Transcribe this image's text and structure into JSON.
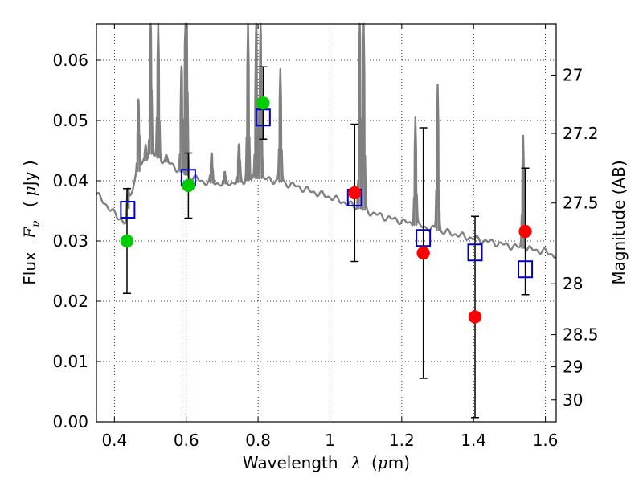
{
  "chart_data": {
    "type": "scatter",
    "xlabel_text": "Wavelength",
    "xlabel_symbol": "λ",
    "xlabel_unit_open": "(",
    "xlabel_unit_mu": "μ",
    "xlabel_unit_rest": "m)",
    "ylabel_text": "Flux",
    "ylabel_symbol": "F",
    "ylabel_sub": "ν",
    "ylabel_unit_open": "(",
    "ylabel_unit_mu": "μ",
    "ylabel_unit_rest": "Jy )",
    "y2label": "Magnitude (AB)",
    "xlim": [
      0.35,
      1.63
    ],
    "ylim": [
      0.0,
      0.066
    ],
    "grid": true,
    "xticks": [
      0.4,
      0.6,
      0.8,
      1.0,
      1.2,
      1.4,
      1.6
    ],
    "xtick_labels": [
      "0.4",
      "0.6",
      "0.8",
      "1",
      "1.2",
      "1.4",
      "1.6"
    ],
    "yticks": [
      0.0,
      0.01,
      0.02,
      0.03,
      0.04,
      0.05,
      0.06
    ],
    "ytick_labels": [
      "0.00",
      "0.01",
      "0.02",
      "0.03",
      "0.04",
      "0.05",
      "0.06"
    ],
    "y2ticks": [
      27,
      27.2,
      27.5,
      28,
      28.5,
      29,
      30
    ],
    "y2tick_labels": [
      "27",
      "27.2",
      "27.5",
      "28",
      "28.5",
      "29",
      "30"
    ],
    "series": [
      {
        "marker": "square",
        "color": "#0000cc",
        "points": [
          {
            "x": 0.437,
            "y": 0.0352
          },
          {
            "x": 0.606,
            "y": 0.0405
          },
          {
            "x": 0.814,
            "y": 0.0505
          },
          {
            "x": 1.069,
            "y": 0.0372
          },
          {
            "x": 1.26,
            "y": 0.0305
          },
          {
            "x": 1.404,
            "y": 0.0281
          },
          {
            "x": 1.544,
            "y": 0.0253
          }
        ]
      },
      {
        "marker": "circle",
        "color": "#00cc00",
        "points": [
          {
            "x": 0.435,
            "y": 0.03,
            "yerr_low": 0.0213,
            "yerr_high": 0.0387
          },
          {
            "x": 0.606,
            "y": 0.0392,
            "yerr_low": 0.0338,
            "yerr_high": 0.0446
          },
          {
            "x": 0.814,
            "y": 0.0529,
            "yerr_low": 0.0469,
            "yerr_high": 0.0589
          }
        ]
      },
      {
        "marker": "circle",
        "color": "#ff0000",
        "points": [
          {
            "x": 1.069,
            "y": 0.038,
            "yerr_low": 0.0266,
            "yerr_high": 0.0494
          },
          {
            "x": 1.26,
            "y": 0.028,
            "yerr_low": 0.0072,
            "yerr_high": 0.0488
          },
          {
            "x": 1.404,
            "y": 0.0174,
            "yerr_low": 0.0007,
            "yerr_high": 0.0341
          },
          {
            "x": 1.544,
            "y": 0.0316,
            "yerr_low": 0.0211,
            "yerr_high": 0.0421
          }
        ]
      }
    ],
    "model_spectrum": {
      "color": "#808080",
      "continuum": [
        [
          0.35,
          0.0378
        ],
        [
          0.4,
          0.0345
        ],
        [
          0.43,
          0.033
        ],
        [
          0.44,
          0.0365
        ],
        [
          0.46,
          0.041
        ],
        [
          0.5,
          0.0445
        ],
        [
          0.55,
          0.043
        ],
        [
          0.6,
          0.041
        ],
        [
          0.65,
          0.0398
        ],
        [
          0.7,
          0.0395
        ],
        [
          0.75,
          0.0398
        ],
        [
          0.8,
          0.0405
        ],
        [
          0.85,
          0.04
        ],
        [
          0.9,
          0.0392
        ],
        [
          0.95,
          0.0382
        ],
        [
          1.0,
          0.0373
        ],
        [
          1.05,
          0.0362
        ],
        [
          1.1,
          0.035
        ],
        [
          1.15,
          0.034
        ],
        [
          1.2,
          0.0333
        ],
        [
          1.25,
          0.0325
        ],
        [
          1.3,
          0.0318
        ],
        [
          1.35,
          0.0311
        ],
        [
          1.4,
          0.0304
        ],
        [
          1.45,
          0.0298
        ],
        [
          1.5,
          0.0292
        ],
        [
          1.55,
          0.0287
        ],
        [
          1.6,
          0.0282
        ],
        [
          1.63,
          0.0275
        ]
      ],
      "lines": [
        {
          "x": 0.437,
          "peak": 0.038
        },
        {
          "x": 0.467,
          "peak": 0.0535
        },
        {
          "x": 0.487,
          "peak": 0.046
        },
        {
          "x": 0.501,
          "peak": 0.066
        },
        {
          "x": 0.522,
          "peak": 0.066
        },
        {
          "x": 0.545,
          "peak": 0.044
        },
        {
          "x": 0.587,
          "peak": 0.059
        },
        {
          "x": 0.598,
          "peak": 0.066
        },
        {
          "x": 0.601,
          "peak": 0.066
        },
        {
          "x": 0.671,
          "peak": 0.0445
        },
        {
          "x": 0.707,
          "peak": 0.041
        },
        {
          "x": 0.747,
          "peak": 0.046
        },
        {
          "x": 0.772,
          "peak": 0.066
        },
        {
          "x": 0.795,
          "peak": 0.066
        },
        {
          "x": 0.807,
          "peak": 0.066
        },
        {
          "x": 0.862,
          "peak": 0.0585
        },
        {
          "x": 1.083,
          "peak": 0.066
        },
        {
          "x": 1.094,
          "peak": 0.066
        },
        {
          "x": 1.238,
          "peak": 0.0505
        },
        {
          "x": 1.3,
          "peak": 0.056
        },
        {
          "x": 1.538,
          "peak": 0.0475
        }
      ]
    }
  }
}
